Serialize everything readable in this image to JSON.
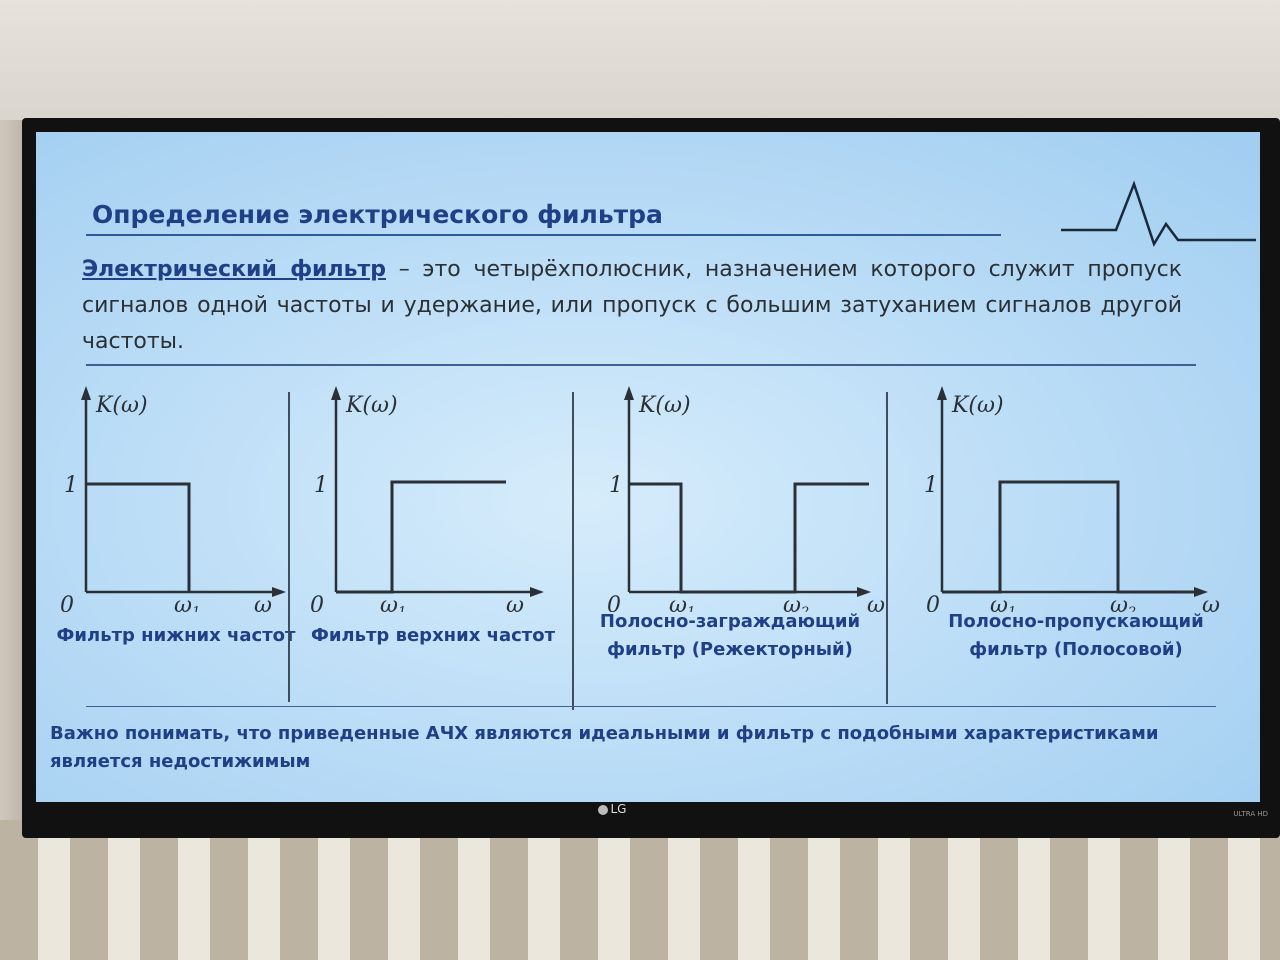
{
  "slide": {
    "title": "Определение электрического фильтра",
    "definition_term": "Электрический фильтр",
    "definition_rest": " – это четырёхполюсник, назначением которого служит пропуск сигналов одной частоты и удержание, или пропуск с большим затуханием сигналов другой частоты.",
    "note": "Важно понимать, что приведенные АЧХ являются идеальными и фильтр с подобными характеристиками является недостижимым"
  },
  "axes": {
    "y_label": "K(ω)",
    "x_label": "ω",
    "origin": "0",
    "level": "1",
    "w1": "ω",
    "w1_sub": "1",
    "w2": "ω",
    "w2_sub": "2"
  },
  "filters": [
    {
      "label_line1": "Фильтр нижних частот",
      "label_line2": "",
      "type": "lowpass",
      "pass": [
        [
          0,
          "ω1"
        ]
      ]
    },
    {
      "label_line1": "Фильтр верхних частот",
      "label_line2": "",
      "type": "highpass",
      "pass": [
        [
          "ω1",
          "∞"
        ]
      ]
    },
    {
      "label_line1": "Полосно-заграждающий",
      "label_line2": "фильтр (Режекторный)",
      "type": "bandstop",
      "pass": [
        [
          0,
          "ω1"
        ],
        [
          "ω2",
          "∞"
        ]
      ]
    },
    {
      "label_line1": "Полосно-пропускающий",
      "label_line2": "фильтр (Полосовой)",
      "type": "bandpass",
      "pass": [
        [
          "ω1",
          "ω2"
        ]
      ]
    }
  ],
  "tv": {
    "brand": "LG",
    "badge": "ULTRA HD"
  },
  "colors": {
    "title": "#1f3f86",
    "screen": "#b8dbf6",
    "text": "#2b3035"
  }
}
